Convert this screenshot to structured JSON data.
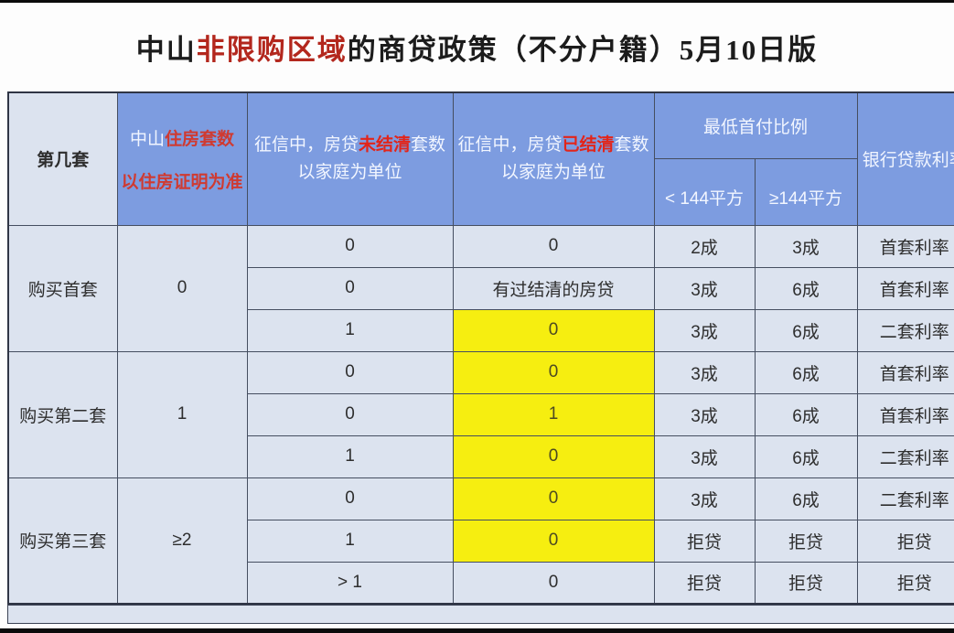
{
  "title": {
    "prefix": "中山",
    "highlight": "非限购区域",
    "suffix": "的商贷政策（不分户籍）5月10日版"
  },
  "colors": {
    "header_blue": "#7d9ce0",
    "body_bg": "#dce3ef",
    "highlight_yellow": "#f6ee10",
    "header_red": "#e2251a",
    "title_red": "#b3271d"
  },
  "header": {
    "col_set": "第几套",
    "col_zs_prefix": "中山",
    "col_zs_red": "住房套数",
    "col_zs_line2": "以住房证明为准",
    "col_unpaid_pre": "征信中，房贷",
    "col_unpaid_red": "未结清",
    "col_unpaid_post": "套数",
    "col_unpaid_line2": "以家庭为单位",
    "col_paid_pre": "征信中，房贷",
    "col_paid_red": "已结清",
    "col_paid_post": "套数",
    "col_paid_line2": "以家庭为单位",
    "col_downpay": "最低首付比例",
    "col_lt144": "< 144平方",
    "col_ge144": "≥144平方",
    "col_rate": "银行贷款利率"
  },
  "groups": [
    {
      "label": "购买首套",
      "count": "0"
    },
    {
      "label": "购买第二套",
      "count": "1"
    },
    {
      "label": "购买第三套",
      "count": "≥2"
    }
  ],
  "rows": [
    {
      "unpaid": "0",
      "paid": "0",
      "paid_highlight": false,
      "lt144": "2成",
      "ge144": "3成",
      "rate": "首套利率"
    },
    {
      "unpaid": "0",
      "paid": "有过结清的房贷",
      "paid_highlight": false,
      "lt144": "3成",
      "ge144": "6成",
      "rate": "首套利率"
    },
    {
      "unpaid": "1",
      "paid": "0",
      "paid_highlight": true,
      "lt144": "3成",
      "ge144": "6成",
      "rate": "二套利率"
    },
    {
      "unpaid": "0",
      "paid": "0",
      "paid_highlight": true,
      "lt144": "3成",
      "ge144": "6成",
      "rate": "首套利率"
    },
    {
      "unpaid": "0",
      "paid": "1",
      "paid_highlight": true,
      "lt144": "3成",
      "ge144": "6成",
      "rate": "首套利率"
    },
    {
      "unpaid": "1",
      "paid": "0",
      "paid_highlight": true,
      "lt144": "3成",
      "ge144": "6成",
      "rate": "二套利率"
    },
    {
      "unpaid": "0",
      "paid": "0",
      "paid_highlight": true,
      "lt144": "3成",
      "ge144": "6成",
      "rate": "二套利率"
    },
    {
      "unpaid": "1",
      "paid": "0",
      "paid_highlight": true,
      "lt144": "拒贷",
      "ge144": "拒贷",
      "rate": "拒贷"
    },
    {
      "unpaid": "> 1",
      "paid": "0",
      "paid_highlight": false,
      "lt144": "拒贷",
      "ge144": "拒贷",
      "rate": "拒贷"
    }
  ]
}
